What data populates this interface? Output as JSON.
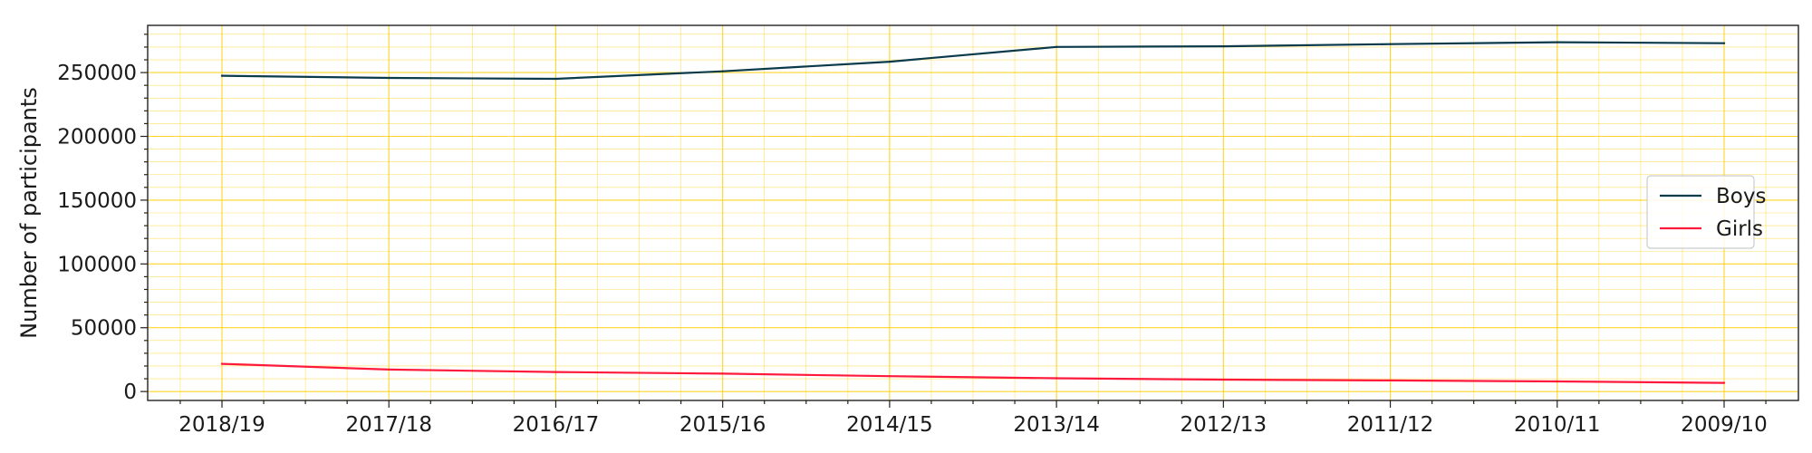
{
  "chart_data": {
    "type": "line",
    "ylabel": "Number of participants",
    "xlabel": "",
    "categories": [
      "2018/19",
      "2017/18",
      "2016/17",
      "2015/16",
      "2014/15",
      "2013/14",
      "2012/13",
      "2011/12",
      "2010/11",
      "2009/10"
    ],
    "series": [
      {
        "name": "Boys",
        "color": "#0b3a4a",
        "values": [
          247500,
          245800,
          245100,
          251000,
          258500,
          270100,
          270600,
          272300,
          273800,
          273000
        ]
      },
      {
        "name": "Girls",
        "color": "#ff1a3c",
        "values": [
          21700,
          17200,
          15300,
          14000,
          12000,
          10400,
          9300,
          8700,
          7900,
          6800
        ]
      }
    ],
    "ylim": [
      -7000,
      287000
    ],
    "yticks": [
      0,
      50000,
      100000,
      150000,
      200000,
      250000
    ],
    "grid": true,
    "grid_color": "#ffd21f",
    "legend_position": "center-right"
  }
}
